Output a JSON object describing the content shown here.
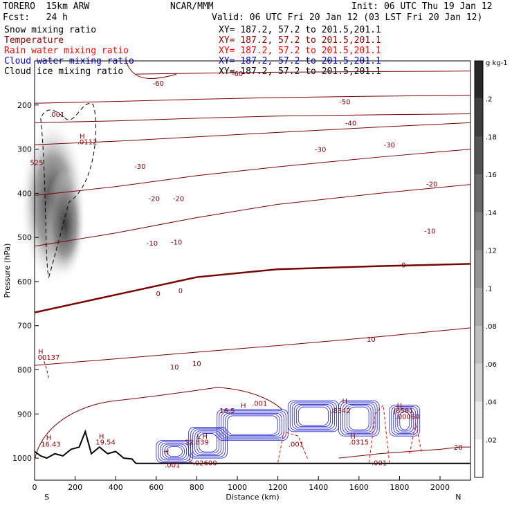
{
  "header": {
    "model": "TORERO  15km ARW",
    "center": "NCAR/MMM",
    "init": "Init: 06 UTC Thu 19 Jan 12",
    "fcst": "Fcst:   24 h",
    "valid": "Valid: 06 UTC Fri 20 Jan 12 (03 LST Fri 20 Jan 12)",
    "fields": [
      {
        "name": "Snow mixing ratio",
        "color": "#000000",
        "xy": "XY= 187.2, 57.2 to 201.5,201.1"
      },
      {
        "name": "Temperature",
        "color": "#8b0000",
        "xy": "XY= 187.2, 57.2 to 201.5,201.1"
      },
      {
        "name": "Rain water mixing ratio",
        "color": "#ff0000",
        "xy": "XY= 187.2, 57.2 to 201.5,201.1"
      },
      {
        "name": "Cloud water mixing ratio",
        "color": "#0000cc",
        "xy": "XY= 187.2, 57.2 to 201.5,201.1"
      },
      {
        "name": "Cloud ice mixing ratio",
        "color": "#000000",
        "xy": "XY= 187.2, 57.2 to 201.5,201.1"
      }
    ]
  },
  "chart_data": {
    "type": "contour",
    "xlabel": "Distance (km)",
    "ylabel": "Pressure (hPa)",
    "xlim": [
      0,
      2150
    ],
    "ylim": [
      1050,
      100
    ],
    "x_ticks": [
      0,
      200,
      400,
      600,
      800,
      1000,
      1200,
      1400,
      1600,
      1800,
      2000
    ],
    "y_ticks": [
      200,
      300,
      400,
      500,
      600,
      700,
      800,
      900,
      1000
    ],
    "x_end_labels": {
      "left": "S",
      "right": "N"
    },
    "colorbar": {
      "unit": "g kg-1",
      "ticks": [
        ".02",
        ".04",
        ".06",
        ".08",
        ".1",
        ".12",
        ".14",
        ".16",
        ".18",
        ".2"
      ],
      "colormap": "white-to-black"
    },
    "temperature_isotherms": [
      {
        "level": -60,
        "p": [
          130,
          128,
          126,
          125,
          124,
          123
        ],
        "x": [
          500,
          800,
          1100,
          1400,
          1800,
          2150
        ]
      },
      {
        "level": -50,
        "p": [
          196,
          192,
          187,
          183,
          180,
          178
        ],
        "x": [
          0,
          400,
          800,
          1200,
          1700,
          2150
        ]
      },
      {
        "level": -40,
        "p": [
          240,
          236,
          230,
          225,
          222,
          220
        ],
        "x": [
          0,
          400,
          800,
          1200,
          1700,
          2150
        ]
      },
      {
        "level": -30,
        "p": [
          290,
          282,
          272,
          262,
          250,
          240
        ],
        "x": [
          0,
          400,
          800,
          1200,
          1700,
          2150
        ]
      },
      {
        "level": -20,
        "p": [
          405,
          385,
          360,
          340,
          318,
          300
        ],
        "x": [
          0,
          400,
          800,
          1200,
          1700,
          2150
        ]
      },
      {
        "level": -10,
        "p": [
          520,
          490,
          455,
          425,
          400,
          380
        ],
        "x": [
          0,
          400,
          800,
          1200,
          1700,
          2150
        ]
      },
      {
        "level": 0,
        "p": [
          670,
          630,
          590,
          572,
          565,
          560
        ],
        "x": [
          0,
          400,
          800,
          1200,
          1700,
          2150
        ]
      },
      {
        "level": 10,
        "p": [
          790,
          775,
          760,
          745,
          725,
          705
        ],
        "x": [
          0,
          400,
          800,
          1200,
          1700,
          2150
        ]
      },
      {
        "level": 20,
        "p": [
          1000,
          990,
          985,
          980,
          975,
          975
        ],
        "x": [
          1500,
          1700,
          1850,
          2000,
          2100,
          2150
        ]
      }
    ],
    "contour_labels": [
      {
        "text": "-60",
        "x": 1000,
        "p": 128
      },
      {
        "text": "-60",
        "x": 610,
        "p": 150
      },
      {
        "text": "-50",
        "x": 1530,
        "p": 192
      },
      {
        "text": "-40",
        "x": 1560,
        "p": 240
      },
      {
        "text": "-30",
        "x": 1410,
        "p": 300
      },
      {
        "text": "-30",
        "x": 1750,
        "p": 290
      },
      {
        "text": "-30",
        "x": 520,
        "p": 338
      },
      {
        "text": "-20",
        "x": 590,
        "p": 411
      },
      {
        "text": "-20",
        "x": 710,
        "p": 411
      },
      {
        "text": "-20",
        "x": 1960,
        "p": 378
      },
      {
        "text": "-10",
        "x": 580,
        "p": 512
      },
      {
        "text": "-10",
        "x": 700,
        "p": 510
      },
      {
        "text": "-10",
        "x": 1950,
        "p": 485
      },
      {
        "text": "0",
        "x": 610,
        "p": 627
      },
      {
        "text": "0",
        "x": 720,
        "p": 620
      },
      {
        "text": "0",
        "x": 1820,
        "p": 562
      },
      {
        "text": "10",
        "x": 690,
        "p": 793
      },
      {
        "text": "10",
        "x": 800,
        "p": 785
      },
      {
        "text": "10",
        "x": 1660,
        "p": 730
      },
      {
        "text": "20",
        "x": 2090,
        "p": 975
      }
    ],
    "extrema": [
      {
        "text": "H",
        "x": 235,
        "p": 270
      },
      {
        "text": ".0112",
        "x": 260,
        "p": 283
      },
      {
        "text": ".001",
        "x": 110,
        "p": 221
      },
      {
        "text": "525",
        "x": 10,
        "p": 330
      },
      {
        "text": "H",
        "x": 30,
        "p": 758
      },
      {
        "text": "00137",
        "x": 70,
        "p": 771
      },
      {
        "text": "H",
        "x": 70,
        "p": 953
      },
      {
        "text": "16.43",
        "x": 80,
        "p": 968
      },
      {
        "text": "H",
        "x": 330,
        "p": 950
      },
      {
        "text": "19.54",
        "x": 350,
        "p": 963
      },
      {
        "text": "H",
        "x": 1030,
        "p": 880
      },
      {
        "text": "16.5",
        "x": 950,
        "p": 892
      },
      {
        "text": ".001",
        "x": 1110,
        "p": 875
      },
      {
        "text": "L",
        "x": 810,
        "p": 950
      },
      {
        "text": "H",
        "x": 840,
        "p": 950
      },
      {
        "text": "12.839",
        "x": 800,
        "p": 963
      },
      {
        "text": "H",
        "x": 650,
        "p": 985
      },
      {
        "text": ".001",
        "x": 680,
        "p": 1015
      },
      {
        "text": ".02600",
        "x": 840,
        "p": 1010
      },
      {
        "text": "L",
        "x": 770,
        "p": 1004
      },
      {
        "text": "H",
        "x": 1530,
        "p": 870
      },
      {
        "text": ".8342",
        "x": 1510,
        "p": 892
      },
      {
        "text": ".001",
        "x": 1290,
        "p": 968
      },
      {
        "text": "H",
        "x": 1570,
        "p": 950
      },
      {
        "text": ".0315",
        "x": 1600,
        "p": 963
      },
      {
        "text": "H",
        "x": 1800,
        "p": 880
      },
      {
        "text": "J6581",
        "x": 1820,
        "p": 892
      },
      {
        "text": ".00060",
        "x": 1840,
        "p": 905
      },
      {
        "text": ".001",
        "x": 1700,
        "p": 1010
      }
    ],
    "terrain": {
      "x": [
        0,
        30,
        60,
        100,
        140,
        180,
        220,
        250,
        280,
        320,
        360,
        400,
        440,
        480,
        500,
        2150
      ],
      "p": [
        985,
        995,
        1000,
        990,
        995,
        980,
        975,
        940,
        990,
        975,
        990,
        985,
        1000,
        1002,
        1012,
        1012
      ]
    }
  }
}
